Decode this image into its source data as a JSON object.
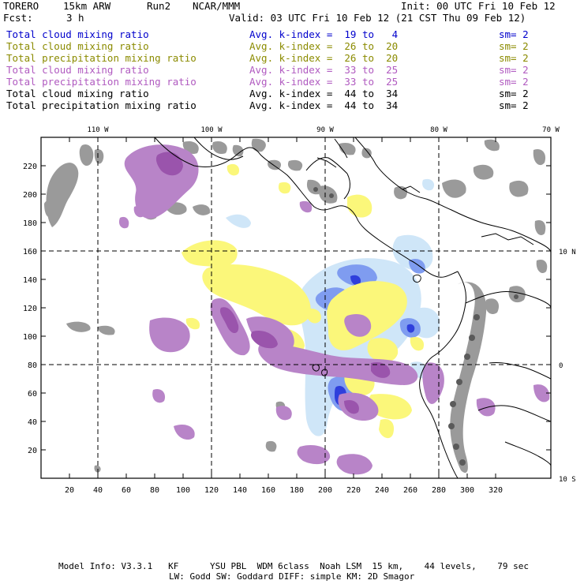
{
  "header": {
    "model": "TORERO",
    "resolution": "15km ARW",
    "run": "Run2",
    "org": "NCAR/MMM",
    "init": "Init: 00 UTC Fri 10 Feb 12",
    "fcst_label": "Fcst:",
    "fcst_value": "3 h",
    "valid": "Valid: 03 UTC Fri 10 Feb 12 (21 CST Thu 09 Feb 12)"
  },
  "legend": [
    {
      "field": "Total cloud mixing ratio",
      "index": "Avg. k-index =  19 to   4",
      "sm": "sm= 2",
      "color": "#0000cc"
    },
    {
      "field": "Total cloud mixing ratio",
      "index": "Avg. k-index =  26 to  20",
      "sm": "sm= 2",
      "color": "#8b8b00"
    },
    {
      "field": "Total precipitation mixing ratio",
      "index": "Avg. k-index =  26 to  20",
      "sm": "sm= 2",
      "color": "#8b8b00"
    },
    {
      "field": "Total cloud mixing ratio",
      "index": "Avg. k-index =  33 to  25",
      "sm": "sm= 2",
      "color": "#b05ac0"
    },
    {
      "field": "Total precipitation mixing ratio",
      "index": "Avg. k-index =  33 to  25",
      "sm": "sm= 2",
      "color": "#b05ac0"
    },
    {
      "field": "Total cloud mixing ratio",
      "index": "Avg. k-index =  44 to  34",
      "sm": "sm= 2",
      "color": "#000000"
    },
    {
      "field": "Total precipitation mixing ratio",
      "index": "Avg. k-index =  44 to  34",
      "sm": "sm= 2",
      "color": "#000000"
    }
  ],
  "map": {
    "lon_labels": [
      "110 W",
      "100 W",
      "90 W",
      "80 W",
      "70 W"
    ],
    "lat_labels": [
      "10 N",
      "0",
      "10 S"
    ],
    "x_ticks": [
      "20",
      "40",
      "60",
      "80",
      "100",
      "120",
      "140",
      "160",
      "180",
      "200",
      "220",
      "240",
      "260",
      "280",
      "300",
      "320"
    ],
    "y_ticks": [
      "20",
      "40",
      "60",
      "80",
      "100",
      "120",
      "140",
      "160",
      "180",
      "200",
      "220"
    ],
    "colors": {
      "blue_light": "#cfe6f8",
      "blue_mid": "#7f9cf0",
      "blue_dark": "#2f3fdc",
      "yellow": "#fbf77a",
      "purple_light": "#b884c8",
      "purple": "#9a54ac",
      "gray": "#9a9a9a",
      "gray_dark": "#5a5a5a"
    }
  },
  "footer": {
    "line1": "Model Info: V3.3.1   KF      YSU PBL  WDM 6class  Noah LSM  15 km,    44 levels,    79 sec",
    "line2": "LW: Godd SW: Goddard DIFF: simple KM: 2D Smagor"
  }
}
